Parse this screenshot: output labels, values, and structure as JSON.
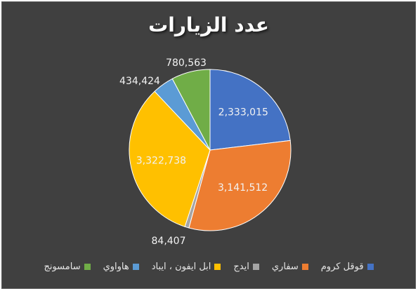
{
  "chart_data": {
    "type": "pie",
    "title": "عدد الزيارات",
    "categories": [
      "قوقل كروم",
      "سفاري",
      "ايدج",
      "ابل ايفون ، ايباد",
      "هاواوي",
      "سامسونج"
    ],
    "values": [
      2333015,
      3141512,
      84407,
      3322738,
      434424,
      780563
    ],
    "value_labels": [
      "2,333,015",
      "3,141,512",
      "84,407",
      "3,322,738",
      "434,424",
      "780,563"
    ],
    "colors": [
      "#4472C4",
      "#ED7D31",
      "#A5A5A5",
      "#FFC000",
      "#5B9BD5",
      "#70AD47"
    ],
    "legend_position": "bottom",
    "start_angle": "12 o'clock",
    "direction": "clockwise"
  }
}
